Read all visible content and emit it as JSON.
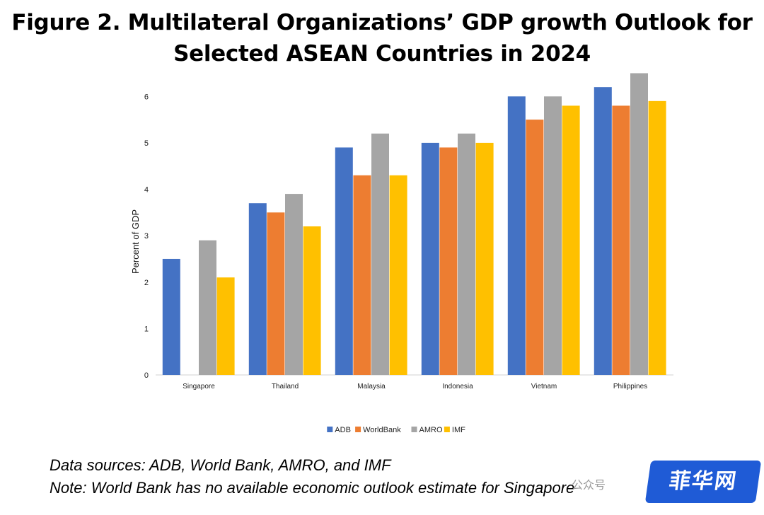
{
  "title_line1": "Figure 2. Multilateral Organizations’ GDP growth Outlook for",
  "title_line2": "Selected ASEAN Countries in 2024",
  "notes": {
    "sources": "Data sources: ADB, World Bank, AMRO, and IMF",
    "note": "Note: World Bank has no available economic outlook estimate for Singapore"
  },
  "watermark": {
    "text": "公众号",
    "badge": "菲华网"
  },
  "chart_data": {
    "type": "bar",
    "title": "Figure 2. Multilateral Organizations’ GDP growth Outlook for Selected ASEAN Countries in 2024",
    "ylabel": "Percent of GDP",
    "xlabel": "",
    "ylim": [
      0,
      6
    ],
    "yticks": [
      0,
      1,
      2,
      3,
      4,
      5,
      6
    ],
    "categories": [
      "Singapore",
      "Thailand",
      "Malaysia",
      "Indonesia",
      "Vietnam",
      "Philippines"
    ],
    "series": [
      {
        "name": "ADB",
        "color": "#4472C4",
        "values": [
          2.5,
          3.7,
          4.9,
          5.0,
          6.0,
          6.2
        ]
      },
      {
        "name": "WorldBank",
        "color": "#ED7D31",
        "values": [
          null,
          3.5,
          4.3,
          4.9,
          5.5,
          5.8
        ]
      },
      {
        "name": "AMRO",
        "color": "#A5A5A5",
        "values": [
          2.9,
          3.9,
          5.2,
          5.2,
          6.0,
          6.5
        ]
      },
      {
        "name": "IMF",
        "color": "#FFC000",
        "values": [
          2.1,
          3.2,
          4.3,
          5.0,
          5.8,
          5.9
        ]
      }
    ],
    "grid": false,
    "legend_position": "bottom"
  }
}
